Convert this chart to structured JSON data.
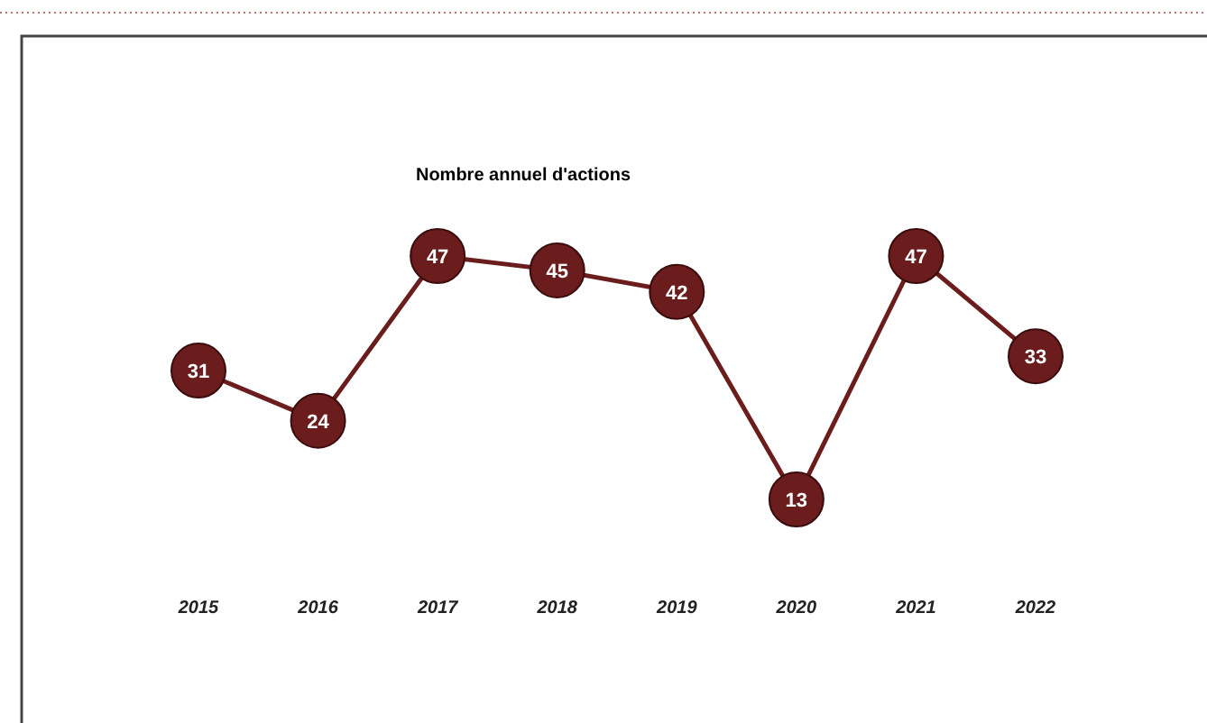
{
  "chart_data": {
    "type": "line",
    "title": "Nombre annuel d'actions",
    "categories": [
      "2015",
      "2016",
      "2017",
      "2018",
      "2019",
      "2020",
      "2021",
      "2022"
    ],
    "series": [
      {
        "color": "#6b1c1c",
        "values": [
          31,
          24,
          47,
          45,
          42,
          13,
          47,
          33
        ]
      }
    ],
    "data_labels": true,
    "marker": "circle"
  }
}
